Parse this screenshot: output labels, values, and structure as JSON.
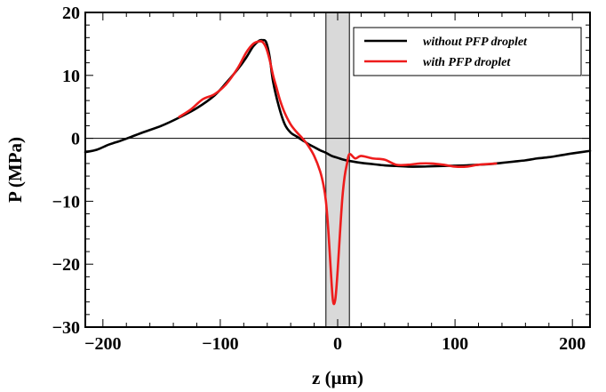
{
  "chart_data": {
    "type": "line",
    "xlabel": "z (μm)",
    "ylabel": "P (MPa)",
    "xlim": [
      -215,
      215
    ],
    "ylim": [
      -30,
      20
    ],
    "x_ticks": [
      -200,
      -100,
      0,
      100,
      200
    ],
    "x_tick_labels": [
      "−200",
      "−100",
      "0",
      "100",
      "200"
    ],
    "y_ticks": [
      20,
      10,
      0,
      -10,
      -20,
      -30
    ],
    "y_tick_labels": [
      "20",
      "10",
      "0",
      "−10",
      "−20",
      "−30"
    ],
    "zero_line": true,
    "shaded_band": {
      "x_range": [
        -10,
        10
      ],
      "color": "#d9d9d9"
    },
    "legend_position": "top-right",
    "series": [
      {
        "name": "without PFP droplet",
        "color": "#000000",
        "x": [
          -215,
          -205,
          -195,
          -185,
          -175,
          -165,
          -150,
          -135,
          -120,
          -105,
          -95,
          -85,
          -78,
          -72,
          -67,
          -64,
          -61,
          -58,
          -55,
          -50,
          -45,
          -40,
          -35,
          -30,
          -25,
          -20,
          -15,
          -10,
          -5,
          0,
          5,
          10,
          20,
          30,
          40,
          50,
          60,
          70,
          80,
          90,
          100,
          110,
          120,
          130,
          140,
          150,
          160,
          170,
          180,
          190,
          200,
          215
        ],
        "y": [
          -2.2,
          -1.8,
          -1.0,
          -0.4,
          0.3,
          1.0,
          2.0,
          3.3,
          4.8,
          6.8,
          8.8,
          11.0,
          12.8,
          14.6,
          15.5,
          15.6,
          15.3,
          13.0,
          9.0,
          5.0,
          2.2,
          0.9,
          0.3,
          -0.3,
          -0.9,
          -1.4,
          -1.9,
          -2.3,
          -2.8,
          -3.1,
          -3.4,
          -3.6,
          -3.9,
          -4.1,
          -4.3,
          -4.4,
          -4.5,
          -4.5,
          -4.45,
          -4.4,
          -4.35,
          -4.3,
          -4.2,
          -4.1,
          -3.9,
          -3.7,
          -3.5,
          -3.2,
          -3.0,
          -2.7,
          -2.4,
          -2.0
        ]
      },
      {
        "name": "with PFP droplet",
        "color": "#ee1c1c",
        "x": [
          -135,
          -125,
          -115,
          -105,
          -95,
          -85,
          -78,
          -72,
          -67,
          -64,
          -61,
          -58,
          -55,
          -52,
          -49,
          -45,
          -40,
          -35,
          -30,
          -25,
          -20,
          -15,
          -12,
          -10,
          -8,
          -6,
          -4,
          -2,
          0,
          2,
          4,
          6,
          8,
          10,
          15,
          20,
          30,
          40,
          50,
          60,
          70,
          80,
          90,
          100,
          110,
          120,
          135
        ],
        "y": [
          3.4,
          4.6,
          6.2,
          7.0,
          8.6,
          11.2,
          13.6,
          15.0,
          15.4,
          15.3,
          14.4,
          12.5,
          10.0,
          8.0,
          6.0,
          4.0,
          2.2,
          1.0,
          0.0,
          -1.2,
          -2.8,
          -5.2,
          -7.5,
          -10.0,
          -14.5,
          -20.5,
          -25.8,
          -25.6,
          -21.0,
          -15.0,
          -9.5,
          -6.0,
          -4.0,
          -2.5,
          -3.2,
          -2.8,
          -3.2,
          -3.4,
          -4.2,
          -4.2,
          -4.0,
          -4.0,
          -4.2,
          -4.5,
          -4.5,
          -4.2,
          -4.0
        ]
      }
    ]
  }
}
